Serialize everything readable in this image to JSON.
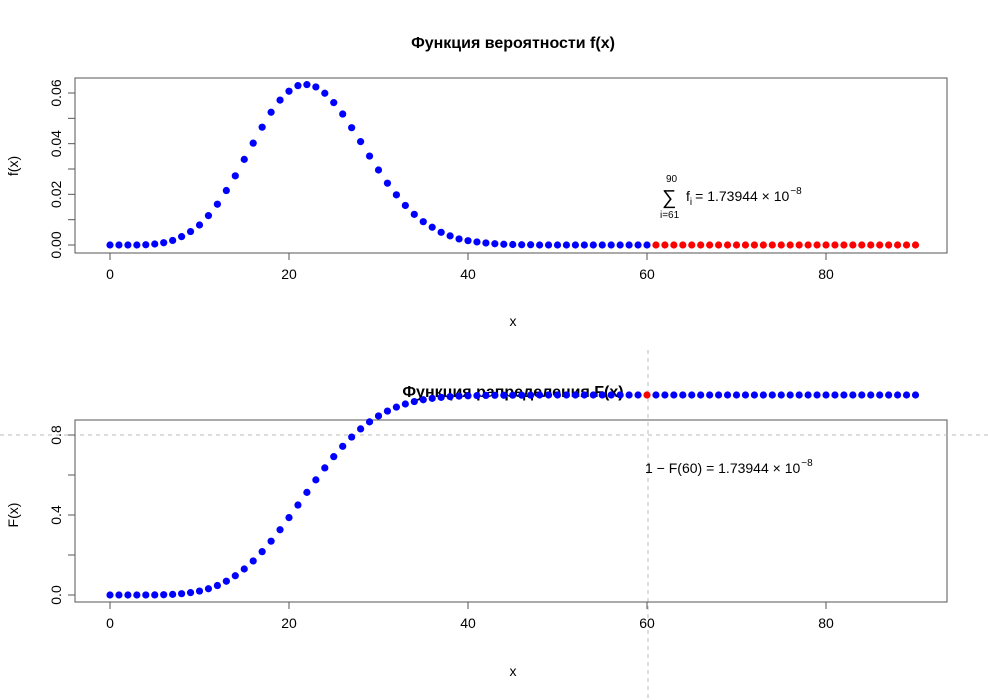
{
  "chart_data": [
    {
      "type": "scatter",
      "title": "Функция вероятности f(x)",
      "xlabel": "x",
      "ylabel": "f(x)",
      "xlim": [
        -5,
        94
      ],
      "ylim": [
        0,
        0.065
      ],
      "x_ticks": [
        "0",
        "20",
        "40",
        "60",
        "80"
      ],
      "y_ticks": [
        "0.00",
        "0.02",
        "0.04",
        "0.06"
      ],
      "grid": false,
      "colors": {
        "normal": "#0000ff",
        "highlight": "#ff0000"
      },
      "highlight_from_x": 61,
      "x_start": 0,
      "values": [
        0,
        0,
        0,
        0,
        0.0001,
        0.0004,
        0.0009,
        0.0018,
        0.0033,
        0.0053,
        0.0079,
        0.0116,
        0.0161,
        0.0215,
        0.0273,
        0.0338,
        0.0402,
        0.0465,
        0.0524,
        0.0572,
        0.0607,
        0.0629,
        0.0633,
        0.0624,
        0.0599,
        0.0562,
        0.0517,
        0.0463,
        0.0408,
        0.0351,
        0.0296,
        0.0244,
        0.0198,
        0.0156,
        0.0121,
        0.0092,
        0.007,
        0.005,
        0.0036,
        0.0024,
        0.0017,
        0.0012,
        0.0008,
        0.0005,
        0.0003,
        0.0002,
        0.0001,
        0.0001,
        0,
        0,
        0,
        0,
        0,
        0,
        0,
        0,
        0,
        0,
        0,
        0,
        0,
        0,
        0,
        0,
        0,
        0,
        0,
        0,
        0,
        0,
        0,
        0,
        0,
        0,
        0,
        0,
        0,
        0,
        0,
        0,
        0,
        0,
        0,
        0,
        0,
        0,
        0,
        0,
        0,
        0,
        0
      ],
      "annotation": {
        "sum_upper": "90",
        "sum_lower": "i=61",
        "term": "f",
        "term_sub": "i",
        "equals": "= 1.73944 × 10",
        "exponent": "−8"
      }
    },
    {
      "type": "scatter",
      "title": "Функция рапределения F(x)",
      "xlabel": "x",
      "ylabel": "F(x)",
      "xlim": [
        -5,
        94
      ],
      "ylim": [
        0,
        1
      ],
      "x_ticks": [
        "0",
        "20",
        "40",
        "60",
        "80"
      ],
      "y_ticks": [
        "0.0",
        "0.4",
        "0.8"
      ],
      "grid": false,
      "colors": {
        "normal": "#0000ff",
        "highlight": "#ff0000",
        "refline": "#bbbbbb"
      },
      "highlight_x": 60,
      "reference_lines": {
        "vertical_x": 60,
        "horizontal_y": 1
      },
      "x_start": 0,
      "values": [
        0,
        0,
        0,
        0,
        0.0001,
        0.0005,
        0.0014,
        0.0032,
        0.0065,
        0.0118,
        0.0197,
        0.0313,
        0.0474,
        0.0689,
        0.0962,
        0.13,
        0.1702,
        0.2167,
        0.2691,
        0.3263,
        0.387,
        0.4499,
        0.5132,
        0.5756,
        0.6355,
        0.6917,
        0.7434,
        0.7897,
        0.8305,
        0.8656,
        0.8952,
        0.9196,
        0.9394,
        0.955,
        0.9671,
        0.9763,
        0.9833,
        0.9883,
        0.9919,
        0.9943,
        0.996,
        0.9972,
        0.998,
        0.9985,
        0.9988,
        0.999,
        0.9991,
        0.9992,
        1,
        1,
        1,
        1,
        1,
        1,
        1,
        1,
        1,
        1,
        1,
        1,
        1,
        1,
        1,
        1,
        1,
        1,
        1,
        1,
        1,
        1,
        1,
        1,
        1,
        1,
        1,
        1,
        1,
        1,
        1,
        1,
        1,
        1,
        1,
        1,
        1,
        1,
        1,
        1,
        1,
        1,
        1
      ],
      "annotation": {
        "text": "1 − F(60) = 1.73944 × 10",
        "exponent": "−8"
      }
    }
  ]
}
